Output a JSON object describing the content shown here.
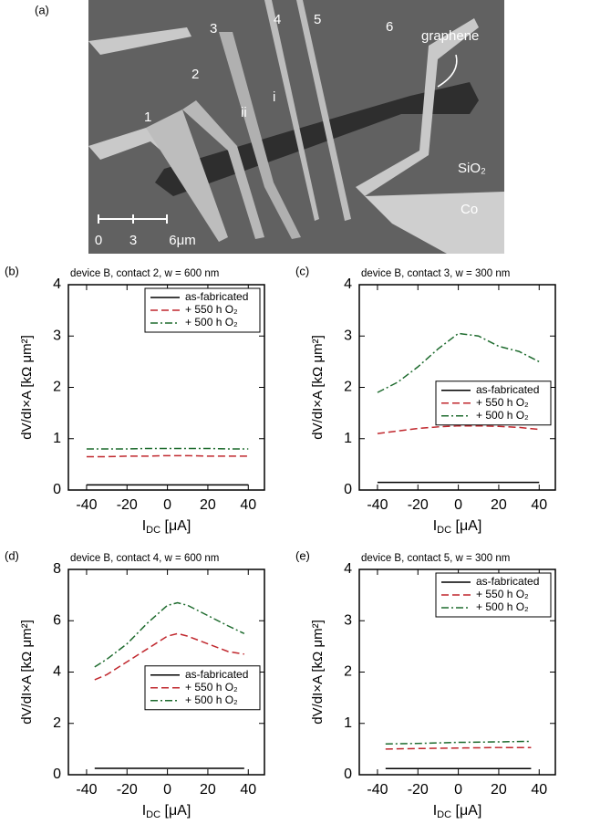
{
  "image_panel": {
    "panel_label": "(a)",
    "contact_labels": [
      "1",
      "2",
      "3",
      "4",
      "5",
      "6"
    ],
    "region_labels": [
      "ii",
      "i"
    ],
    "graphene": "graphene",
    "substrate": "SiO₂",
    "metal": "Co",
    "scale_labels": [
      "0",
      "3",
      "6μm"
    ]
  },
  "chart_data": [
    {
      "type": "line",
      "panel_label": "(b)",
      "title": "device B, contact 2, w = 600 nm",
      "x_label": {
        "main": "I",
        "sub": "DC",
        "rest": " [μA]"
      },
      "y_label": "dV/dI×A [kΩ μm²]",
      "x": [
        -40,
        -30,
        -20,
        -10,
        0,
        10,
        20,
        30,
        40
      ],
      "xlim": [
        -49,
        48
      ],
      "xticks": [
        -40,
        -20,
        0,
        20,
        40
      ],
      "ylim": [
        0,
        4
      ],
      "yticks": [
        0,
        1,
        2,
        3,
        4
      ],
      "legend": "upper right",
      "series": [
        {
          "name": "as-fabricated",
          "color": "#000000",
          "style": "solid",
          "values": [
            0.1,
            0.1,
            0.1,
            0.1,
            0.1,
            0.1,
            0.1,
            0.1,
            0.1
          ]
        },
        {
          "name": "+ 550 h O₂",
          "color": "#c0272d",
          "style": "dashed",
          "values": [
            0.65,
            0.65,
            0.66,
            0.66,
            0.67,
            0.67,
            0.66,
            0.66,
            0.66
          ]
        },
        {
          "name": "+ 500 h O₂",
          "color": "#1e6b2e",
          "style": "dashdot",
          "values": [
            0.8,
            0.8,
            0.8,
            0.81,
            0.81,
            0.81,
            0.81,
            0.8,
            0.8
          ]
        }
      ]
    },
    {
      "type": "line",
      "panel_label": "(c)",
      "title": "device B, contact 3, w = 300 nm",
      "x_label": {
        "main": "I",
        "sub": "DC",
        "rest": " [μA]"
      },
      "y_label": "dV/dI×A [kΩ μm²]",
      "x": [
        -40,
        -30,
        -20,
        -10,
        0,
        10,
        20,
        30,
        40
      ],
      "xlim": [
        -49,
        48
      ],
      "xticks": [
        -40,
        -20,
        0,
        20,
        40
      ],
      "ylim": [
        0,
        4
      ],
      "yticks": [
        0,
        1,
        2,
        3,
        4
      ],
      "legend": "center right",
      "series": [
        {
          "name": "as-fabricated",
          "color": "#000000",
          "style": "solid",
          "values": [
            0.15,
            0.15,
            0.15,
            0.15,
            0.15,
            0.15,
            0.15,
            0.15,
            0.15
          ]
        },
        {
          "name": "+ 550 h O₂",
          "color": "#c0272d",
          "style": "dashed",
          "values": [
            1.1,
            1.15,
            1.2,
            1.23,
            1.25,
            1.25,
            1.24,
            1.22,
            1.18
          ]
        },
        {
          "name": "+ 500 h O₂",
          "color": "#1e6b2e",
          "style": "dashdot",
          "values": [
            1.9,
            2.1,
            2.4,
            2.75,
            3.05,
            3.0,
            2.8,
            2.7,
            2.5
          ]
        }
      ]
    },
    {
      "type": "line",
      "panel_label": "(d)",
      "title": "device B, contact 4, w = 600 nm",
      "x_label": {
        "main": "I",
        "sub": "DC",
        "rest": " [μA]"
      },
      "y_label": "dV/dI×A [kΩ μm²]",
      "x": [
        -36,
        -30,
        -20,
        -10,
        0,
        5,
        10,
        20,
        30,
        38
      ],
      "xlim": [
        -49,
        48
      ],
      "xticks": [
        -40,
        -20,
        0,
        20,
        40
      ],
      "ylim": [
        0,
        8
      ],
      "yticks": [
        0,
        2,
        4,
        6,
        8
      ],
      "legend": "center right",
      "series": [
        {
          "name": "as-fabricated",
          "color": "#000000",
          "style": "solid",
          "values": [
            0.25,
            0.25,
            0.25,
            0.25,
            0.25,
            0.25,
            0.25,
            0.25,
            0.25,
            0.25
          ]
        },
        {
          "name": "+ 550 h O₂",
          "color": "#c0272d",
          "style": "dashed",
          "values": [
            3.7,
            3.9,
            4.4,
            4.9,
            5.4,
            5.5,
            5.4,
            5.1,
            4.8,
            4.7
          ]
        },
        {
          "name": "+ 500 h O₂",
          "color": "#1e6b2e",
          "style": "dashdot",
          "values": [
            4.2,
            4.5,
            5.1,
            5.9,
            6.6,
            6.7,
            6.6,
            6.2,
            5.8,
            5.5
          ]
        }
      ]
    },
    {
      "type": "line",
      "panel_label": "(e)",
      "title": "device B, contact 5, w = 300 nm",
      "x_label": {
        "main": "I",
        "sub": "DC",
        "rest": " [μA]"
      },
      "y_label": "dV/dI×A [kΩ μm²]",
      "x": [
        -36,
        -20,
        0,
        20,
        36
      ],
      "xlim": [
        -49,
        48
      ],
      "xticks": [
        -40,
        -20,
        0,
        20,
        40
      ],
      "ylim": [
        0,
        4
      ],
      "yticks": [
        0,
        1,
        2,
        3,
        4
      ],
      "legend": "upper right",
      "series": [
        {
          "name": "as-fabricated",
          "color": "#000000",
          "style": "solid",
          "values": [
            0.12,
            0.12,
            0.12,
            0.12,
            0.12
          ]
        },
        {
          "name": "+ 550 h O₂",
          "color": "#c0272d",
          "style": "dashed",
          "values": [
            0.5,
            0.51,
            0.52,
            0.53,
            0.53
          ]
        },
        {
          "name": "+ 500 h O₂",
          "color": "#1e6b2e",
          "style": "dashdot",
          "values": [
            0.6,
            0.61,
            0.63,
            0.64,
            0.65
          ]
        }
      ]
    }
  ]
}
